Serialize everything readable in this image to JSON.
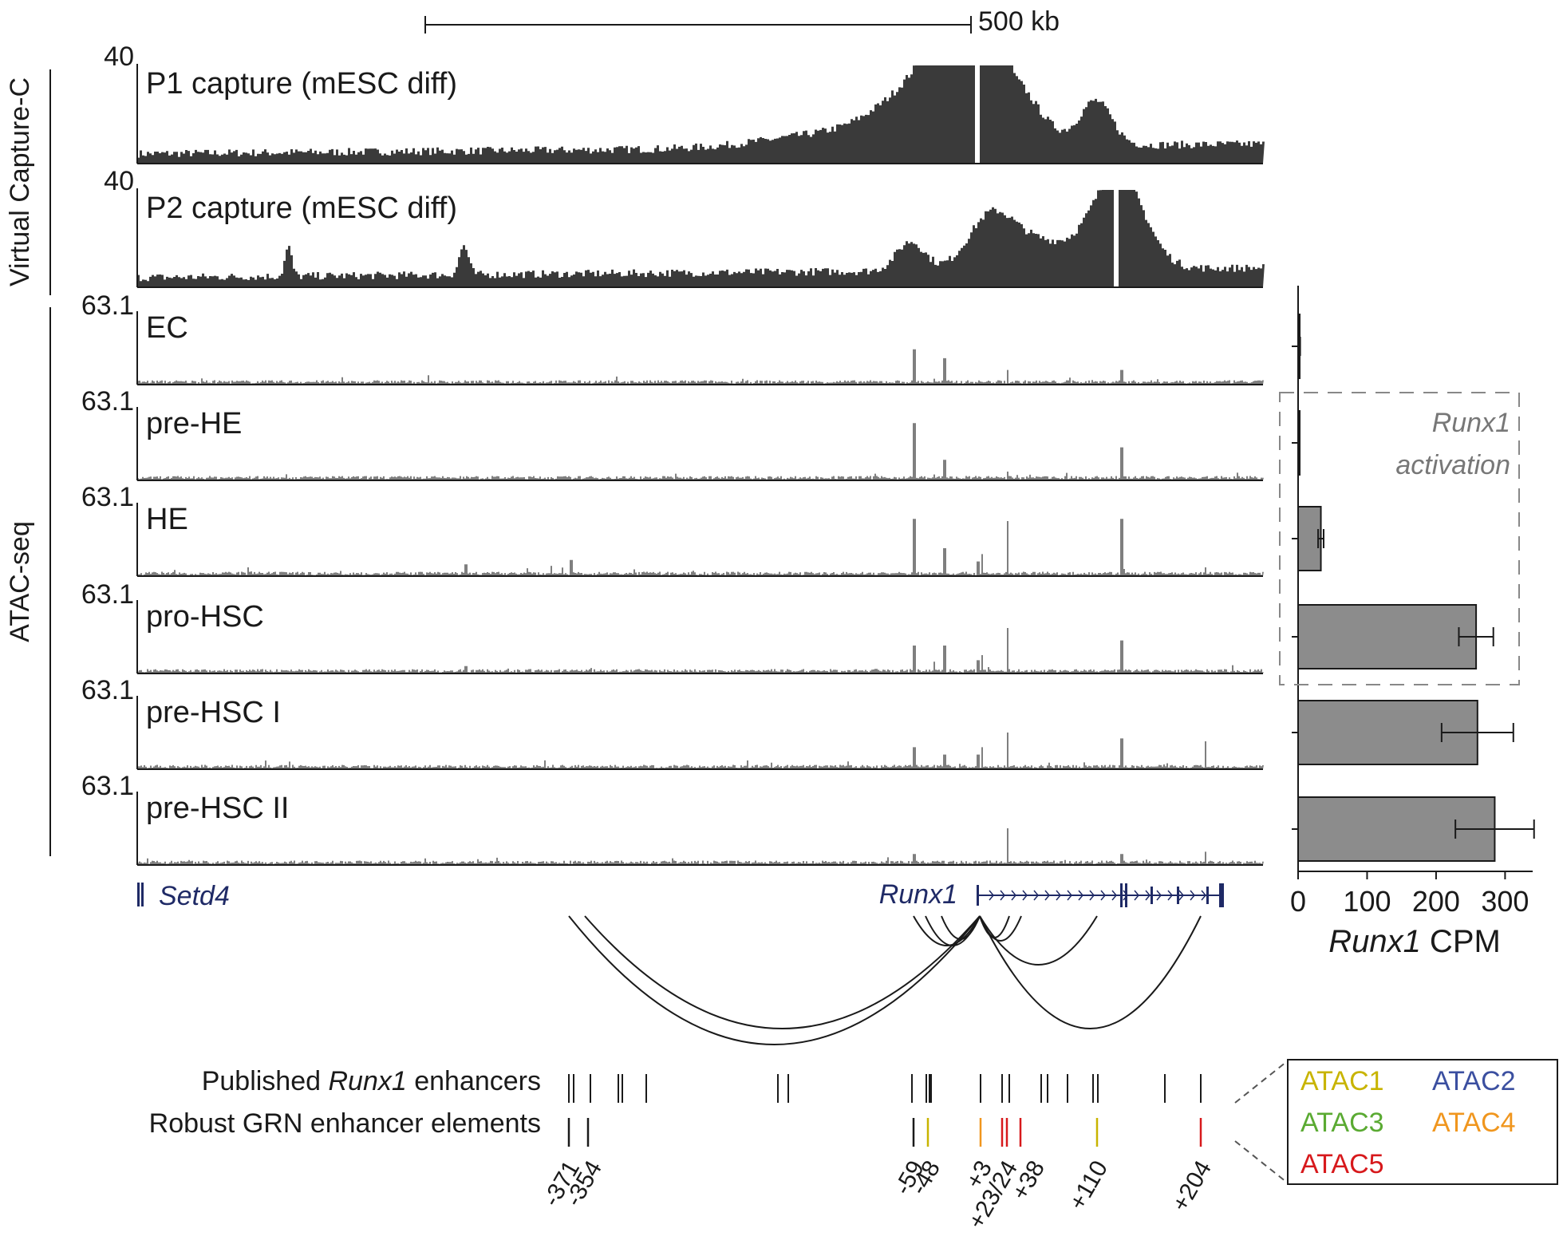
{
  "scale_bar": {
    "label": "500 kb"
  },
  "group_labels": {
    "capture": "Virtual Capture-C",
    "atac": "ATAC-seq"
  },
  "capture_tracks": [
    {
      "label": "P1 capture (mESC diff)",
      "ymax": "40"
    },
    {
      "label": "P2 capture (mESC diff)",
      "ymax": "40"
    }
  ],
  "atac_tracks": [
    {
      "label": "EC",
      "ymax": "63.1"
    },
    {
      "label": "pre-HE",
      "ymax": "63.1"
    },
    {
      "label": "HE",
      "ymax": "63.1"
    },
    {
      "label": "pro-HSC",
      "ymax": "63.1"
    },
    {
      "label": "pre-HSC I",
      "ymax": "63.1"
    },
    {
      "label": "pre-HSC II",
      "ymax": "63.1"
    }
  ],
  "genes": {
    "setd4": "Setd4",
    "runx1": "Runx1"
  },
  "enhancer_rows": {
    "published_prefix": "Published ",
    "published_gene": "Runx1",
    "published_suffix": " enhancers",
    "robust": "Robust GRN enhancer elements"
  },
  "enhancer_positions": [
    "-371",
    "-354",
    "-59",
    "-48",
    "+3",
    "+23/24",
    "+38",
    "+110",
    "+204"
  ],
  "atac_legend": [
    {
      "label": "ATAC1",
      "color": "#c8b400"
    },
    {
      "label": "ATAC2",
      "color": "#3b4fa0"
    },
    {
      "label": "ATAC3",
      "color": "#5aaa32"
    },
    {
      "label": "ATAC4",
      "color": "#f0961e"
    },
    {
      "label": "ATAC5",
      "color": "#d7191c"
    }
  ],
  "activation_box": {
    "line1": "Runx1",
    "line2": "activation"
  },
  "colors": {
    "capture_fill": "#3a3a3a",
    "atac_fill": "#7f7f7f",
    "bar_fill": "#8c8c8c",
    "gene": "#1f2a66",
    "dashed_box": "#888888"
  },
  "chart_data": {
    "type": "bar",
    "orientation": "horizontal",
    "categories": [
      "EC",
      "pre-HE",
      "HE",
      "pro-HSC",
      "pre-HSC I",
      "pre-HSC II"
    ],
    "values": [
      2,
      1,
      33,
      258,
      260,
      285
    ],
    "errors": [
      1,
      1,
      4,
      25,
      52,
      57
    ],
    "xlabel_gene": "Runx1",
    "xlabel_suffix": " CPM",
    "xlim": [
      0,
      340
    ],
    "xticks": [
      "0",
      "100",
      "200",
      "300"
    ]
  }
}
